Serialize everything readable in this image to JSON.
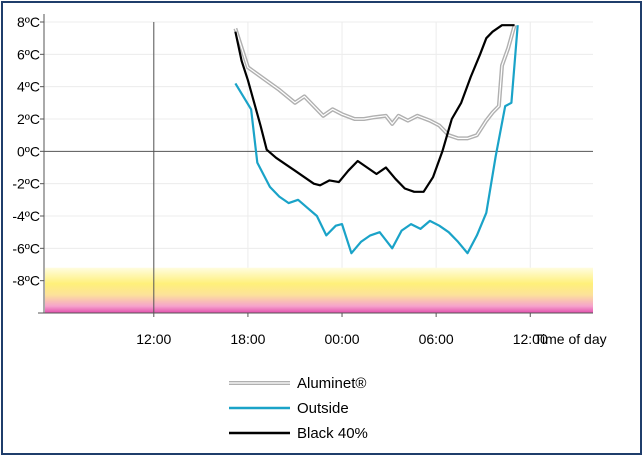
{
  "chart_data": {
    "type": "line",
    "xlabel": "Time of day",
    "ylabel": "",
    "ylim": [
      -10,
      8
    ],
    "y_ticks": [
      8,
      6,
      4,
      2,
      0,
      -2,
      -4,
      -6,
      -8
    ],
    "y_tick_labels": [
      "8ºC",
      "6ºC",
      "4ºC",
      "2ºC",
      "0ºC",
      "-2ºC",
      "-4ºC",
      "-6ºC",
      "-8ºC"
    ],
    "x_ticks": [
      12,
      18,
      24,
      30,
      36
    ],
    "x_tick_labels": [
      "12:00",
      "18:00",
      "00:00",
      "06:00",
      "12:00"
    ],
    "xlim": [
      5,
      40
    ],
    "grid": true,
    "legend_position": "bottom-center",
    "frost_band": {
      "from": -10,
      "to": -7.2,
      "colors": [
        "#fff7b0",
        "#ffe970",
        "#f8a6c6",
        "#e85fae"
      ]
    },
    "series": [
      {
        "name": "Aluminet®",
        "color": "#b0b0b0",
        "style": "double",
        "x": [
          17.2,
          18.0,
          19.0,
          20.0,
          21.0,
          21.6,
          22.2,
          22.8,
          23.4,
          24.0,
          24.8,
          25.4,
          26.0,
          26.8,
          27.2,
          27.6,
          28.2,
          28.8,
          29.6,
          30.2,
          30.8,
          31.4,
          32.0,
          32.6,
          33.2,
          33.6,
          34.0,
          34.2,
          34.6,
          35.0
        ],
        "values": [
          7.6,
          5.2,
          4.5,
          3.8,
          3.0,
          3.4,
          2.8,
          2.2,
          2.6,
          2.3,
          2.0,
          2.0,
          2.1,
          2.2,
          1.7,
          2.2,
          1.9,
          2.2,
          1.9,
          1.6,
          1.0,
          0.8,
          0.8,
          1.0,
          1.9,
          2.4,
          2.8,
          5.3,
          6.4,
          7.8
        ]
      },
      {
        "name": "Outside",
        "color": "#1aa3c8",
        "style": "solid",
        "x": [
          17.2,
          18.2,
          18.6,
          19.4,
          20.0,
          20.6,
          21.2,
          21.8,
          22.4,
          23.0,
          23.6,
          24.0,
          24.6,
          25.2,
          25.8,
          26.4,
          27.2,
          27.8,
          28.4,
          29.0,
          29.6,
          30.2,
          30.8,
          31.4,
          32.0,
          32.6,
          33.2,
          33.8,
          34.4,
          34.8,
          35.2
        ],
        "values": [
          4.2,
          2.6,
          -0.7,
          -2.2,
          -2.8,
          -3.2,
          -3.0,
          -3.5,
          -4.0,
          -5.2,
          -4.6,
          -4.5,
          -6.3,
          -5.6,
          -5.2,
          -5.0,
          -6.0,
          -4.9,
          -4.5,
          -4.8,
          -4.3,
          -4.6,
          -5.0,
          -5.6,
          -6.3,
          -5.2,
          -3.8,
          -0.3,
          2.8,
          3.0,
          7.8
        ]
      },
      {
        "name": "Black 40%",
        "color": "#000000",
        "style": "solid",
        "x": [
          17.2,
          17.6,
          18.0,
          18.4,
          18.8,
          19.2,
          19.8,
          20.4,
          21.0,
          21.6,
          22.2,
          22.6,
          23.2,
          23.8,
          24.4,
          25.0,
          25.6,
          26.2,
          26.8,
          27.4,
          28.0,
          28.6,
          29.2,
          29.8,
          30.4,
          31.0,
          31.6,
          32.2,
          32.8,
          33.2,
          33.6,
          34.2,
          35.0
        ],
        "values": [
          7.4,
          5.6,
          4.4,
          3.0,
          1.6,
          0.1,
          -0.4,
          -0.8,
          -1.2,
          -1.6,
          -2.0,
          -2.1,
          -1.8,
          -1.9,
          -1.2,
          -0.6,
          -1.0,
          -1.4,
          -1.0,
          -1.7,
          -2.3,
          -2.5,
          -2.5,
          -1.6,
          0.0,
          2.0,
          3.0,
          4.6,
          6.0,
          7.0,
          7.4,
          7.8,
          7.8
        ]
      }
    ]
  },
  "legend": [
    {
      "name": "Aluminet®",
      "color": "#b0b0b0",
      "style": "double"
    },
    {
      "name": "Outside",
      "color": "#1aa3c8",
      "style": "solid"
    },
    {
      "name": "Black 40%",
      "color": "#000000",
      "style": "solid"
    }
  ]
}
